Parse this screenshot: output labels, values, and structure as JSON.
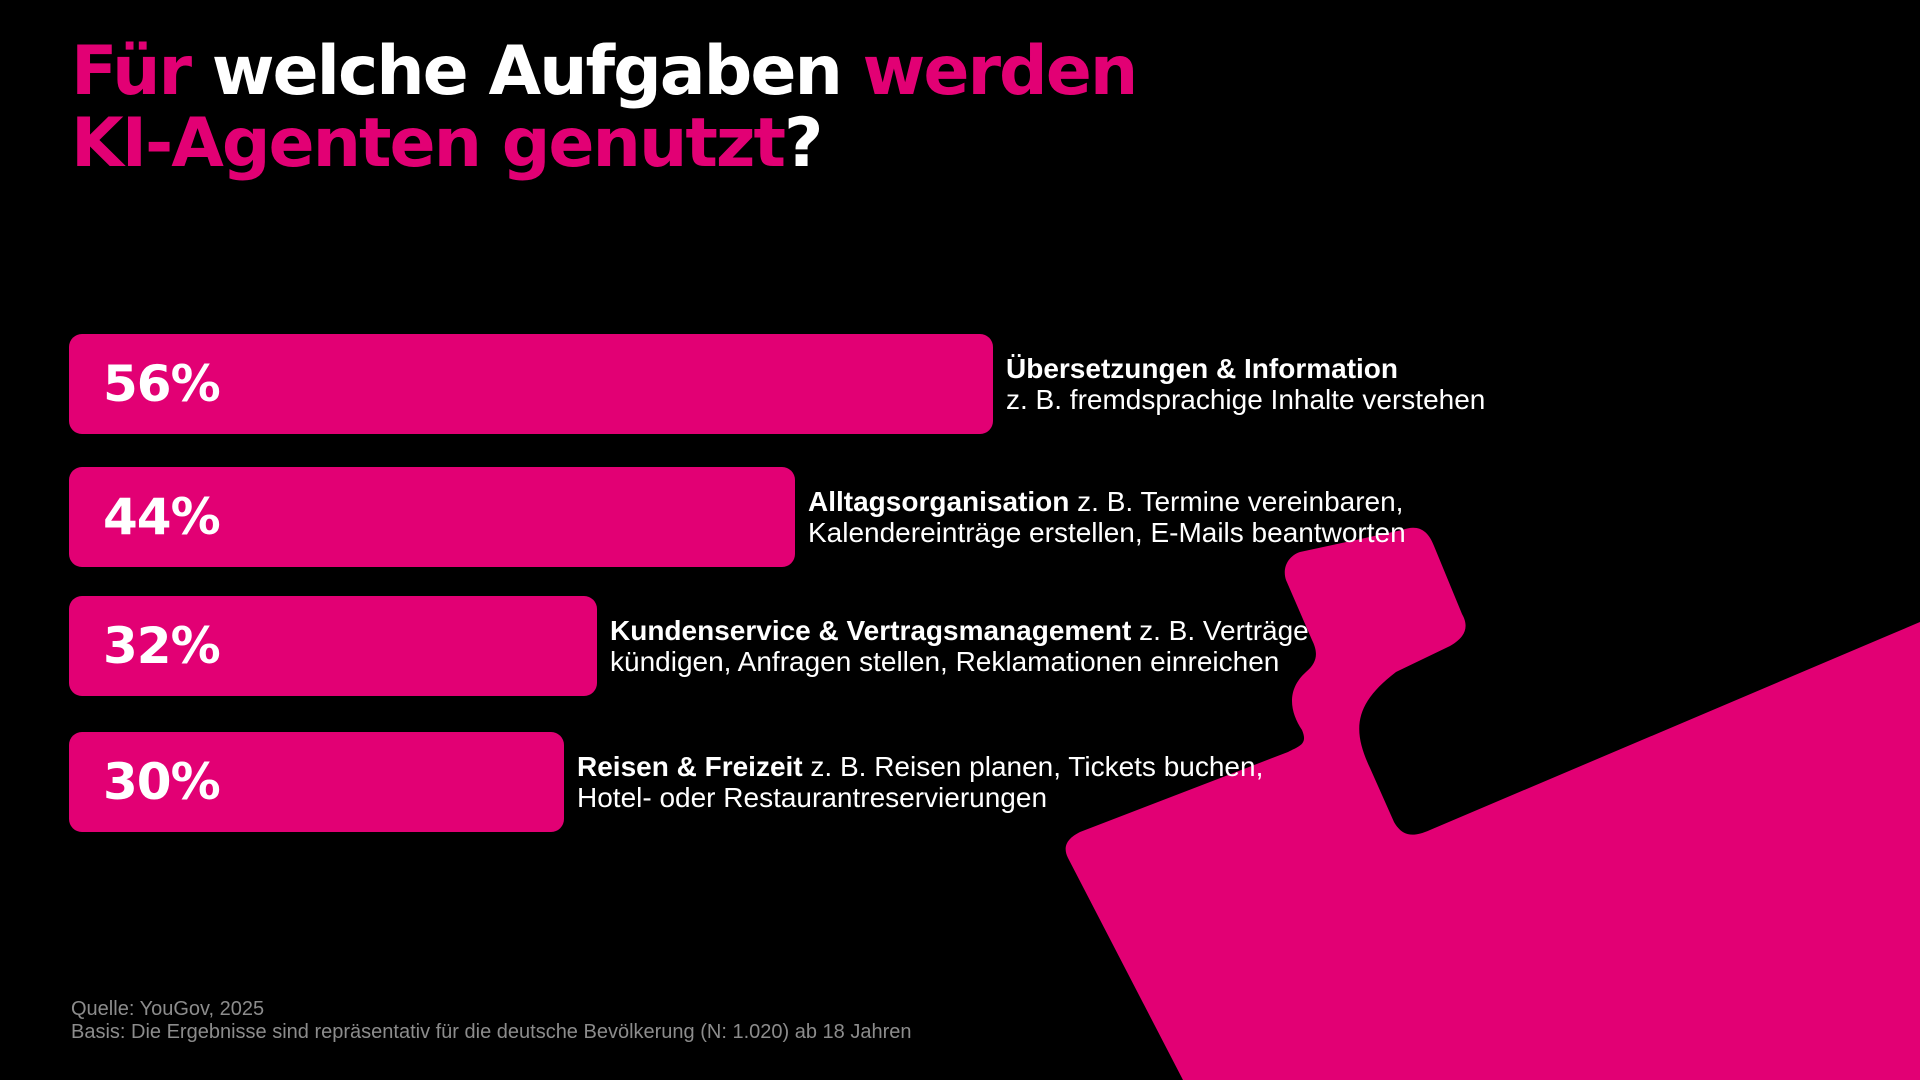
{
  "title": {
    "line1": {
      "part1": "Für",
      "part2": "welche Aufgaben",
      "part3": "werden"
    },
    "line2": {
      "part1": "KI-Agenten genutzt",
      "part2": "?"
    }
  },
  "colors": {
    "accent": "#e20074",
    "background": "#000000",
    "text": "#ffffff",
    "footnote": "#8c8c8c"
  },
  "chart_data": {
    "type": "bar",
    "orientation": "horizontal",
    "grid": false,
    "xlim": [
      0,
      100
    ],
    "categories": [
      "Übersetzungen & Information",
      "Alltagsorganisation",
      "Kundenservice & Vertragsmanagement",
      "Reisen & Freizeit"
    ],
    "values": [
      56,
      44,
      32,
      30
    ],
    "value_labels": [
      "56%",
      "44%",
      "32%",
      "30%"
    ],
    "rows": [
      {
        "value": 56,
        "label": "56%",
        "category": "Übersetzungen & Information",
        "line1_rest": "",
        "line2": "z. B. fremdsprachige Inhalte verstehen"
      },
      {
        "value": 44,
        "label": "44%",
        "category": "Alltagsorganisation",
        "line1_rest": " z. B. Termine vereinbaren,",
        "line2": "Kalendereinträge erstellen, E-Mails beantworten"
      },
      {
        "value": 32,
        "label": "32%",
        "category": "Kundenservice & Vertragsmanagement",
        "line1_rest": " z. B. Verträge",
        "line2": "kündigen, Anfragen stellen, Reklamationen einreichen"
      },
      {
        "value": 30,
        "label": "30%",
        "category": "Reisen & Freizeit",
        "line1_rest": " z. B. Reisen planen, Tickets buchen,",
        "line2": "Hotel- oder Restaurantreservierungen"
      }
    ]
  },
  "footnote": {
    "source": "Quelle: YouGov, 2025",
    "basis": "Basis: Die Ergebnisse sind repräsentativ für die deutsche Bevölkerung (N: 1.020) ab 18 Jahren"
  }
}
